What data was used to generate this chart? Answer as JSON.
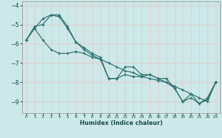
{
  "xlabel": "Humidex (Indice chaleur)",
  "ylabel": "",
  "bg_color": "#cce8e8",
  "line_color": "#2d7070",
  "grid_color": "#e8c8c8",
  "xlim": [
    -0.5,
    23.5
  ],
  "ylim": [
    -9.6,
    -3.8
  ],
  "xticks": [
    0,
    1,
    2,
    3,
    4,
    5,
    6,
    7,
    8,
    9,
    10,
    11,
    12,
    13,
    14,
    15,
    16,
    17,
    18,
    19,
    20,
    21,
    22,
    23
  ],
  "yticks": [
    -9,
    -8,
    -7,
    -6,
    -5,
    -4
  ],
  "line1_x": [
    0,
    1,
    2,
    3,
    4,
    5,
    6,
    7,
    8,
    9,
    10,
    11,
    12,
    13,
    14,
    15,
    16,
    17,
    18,
    19,
    20,
    21,
    22,
    23
  ],
  "line1_y": [
    -5.8,
    -5.2,
    -4.7,
    -4.5,
    -4.5,
    -5.1,
    -5.9,
    -6.3,
    -6.6,
    -6.8,
    -7.8,
    -7.8,
    -7.2,
    -7.2,
    -7.6,
    -7.6,
    -7.8,
    -7.8,
    -8.3,
    -9.0,
    -8.6,
    -9.1,
    -8.8,
    -8.0
  ],
  "line2_x": [
    0,
    1,
    2,
    3,
    4,
    5,
    6,
    7,
    8,
    9,
    10,
    11,
    12,
    13,
    14,
    15,
    16,
    17,
    18,
    19,
    20,
    21,
    22,
    23
  ],
  "line2_y": [
    -5.8,
    -5.1,
    -5.0,
    -4.5,
    -4.6,
    -5.2,
    -5.9,
    -6.2,
    -6.5,
    -6.7,
    -7.8,
    -7.8,
    -7.6,
    -7.7,
    -7.7,
    -7.6,
    -7.8,
    -8.0,
    -8.3,
    -9.0,
    -8.8,
    -9.1,
    -8.9,
    -8.0
  ],
  "line3_x": [
    0,
    1,
    2,
    3,
    4,
    5,
    6,
    7,
    8,
    9,
    10,
    11,
    12,
    13,
    14,
    15,
    16,
    17,
    18,
    19,
    20,
    21,
    22,
    23
  ],
  "line3_y": [
    -5.8,
    -5.2,
    -5.8,
    -6.3,
    -6.5,
    -6.5,
    -6.4,
    -6.5,
    -6.7,
    -6.8,
    -7.0,
    -7.2,
    -7.4,
    -7.5,
    -7.7,
    -7.8,
    -7.9,
    -8.0,
    -8.2,
    -8.4,
    -8.6,
    -8.8,
    -9.0,
    -8.0
  ]
}
